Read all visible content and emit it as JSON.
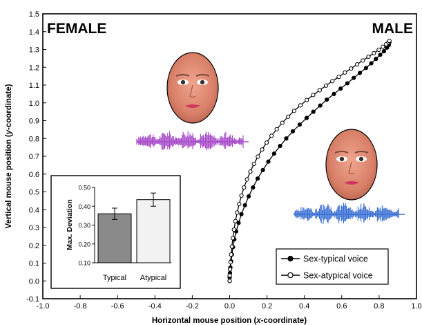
{
  "chart_data": [
    {
      "type": "line",
      "xlabel_parts": [
        "Horizontal mouse position (",
        "x",
        "-coordinate)"
      ],
      "ylabel_parts": [
        "Vertical mouse position (",
        "y",
        "-coordinate)"
      ],
      "xlim": [
        -1.0,
        1.0
      ],
      "ylim": [
        -0.1,
        1.5
      ],
      "xticks": [
        -1.0,
        -0.8,
        -0.6,
        -0.4,
        -0.2,
        0.0,
        0.2,
        0.4,
        0.6,
        0.8,
        1.0
      ],
      "yticks": [
        -0.1,
        0.0,
        0.1,
        0.2,
        0.3,
        0.4,
        0.5,
        0.6,
        0.7,
        0.8,
        0.9,
        1.0,
        1.1,
        1.2,
        1.3,
        1.4,
        1.5
      ],
      "grid": false,
      "legend_position": "bottom-right",
      "annotations": {
        "left_target": "FEMALE",
        "right_target": "MALE"
      },
      "series": [
        {
          "name": "Sex-typical voice",
          "marker": "filled-circle",
          "x": [
            0.0,
            0.0,
            0.002,
            0.004,
            0.008,
            0.012,
            0.018,
            0.025,
            0.035,
            0.048,
            0.063,
            0.082,
            0.102,
            0.125,
            0.15,
            0.178,
            0.207,
            0.238,
            0.27,
            0.303,
            0.338,
            0.375,
            0.412,
            0.448,
            0.485,
            0.52,
            0.558,
            0.594,
            0.63,
            0.664,
            0.697,
            0.73,
            0.758,
            0.783,
            0.806,
            0.826,
            0.842,
            0.852,
            0.855
          ],
          "y": [
            0.0,
            0.02,
            0.045,
            0.075,
            0.11,
            0.148,
            0.19,
            0.233,
            0.278,
            0.326,
            0.375,
            0.425,
            0.475,
            0.525,
            0.575,
            0.623,
            0.67,
            0.715,
            0.758,
            0.8,
            0.84,
            0.878,
            0.915,
            0.95,
            0.985,
            1.018,
            1.05,
            1.08,
            1.11,
            1.14,
            1.168,
            1.196,
            1.222,
            1.247,
            1.27,
            1.29,
            1.31,
            1.325,
            1.34
          ]
        },
        {
          "name": "Sex-atypical voice",
          "marker": "open-circle",
          "x": [
            0.0,
            0.0,
            0.002,
            0.005,
            0.008,
            0.012,
            0.017,
            0.023,
            0.031,
            0.04,
            0.051,
            0.063,
            0.077,
            0.093,
            0.111,
            0.13,
            0.151,
            0.174,
            0.198,
            0.224,
            0.252,
            0.282,
            0.313,
            0.345,
            0.379,
            0.413,
            0.447,
            0.482,
            0.516,
            0.55,
            0.584,
            0.617,
            0.65,
            0.682,
            0.713,
            0.743,
            0.772,
            0.798,
            0.82,
            0.838,
            0.85,
            0.855
          ],
          "y": [
            0.0,
            0.03,
            0.065,
            0.105,
            0.148,
            0.193,
            0.24,
            0.288,
            0.336,
            0.384,
            0.432,
            0.479,
            0.525,
            0.57,
            0.614,
            0.657,
            0.698,
            0.738,
            0.777,
            0.815,
            0.852,
            0.888,
            0.922,
            0.955,
            0.986,
            1.016,
            1.044,
            1.071,
            1.097,
            1.122,
            1.146,
            1.17,
            1.193,
            1.216,
            1.238,
            1.259,
            1.279,
            1.298,
            1.315,
            1.329,
            1.34,
            1.348
          ]
        }
      ]
    },
    {
      "type": "bar",
      "categories": [
        "Typical",
        "Atypical"
      ],
      "values": [
        0.36,
        0.435
      ],
      "error": [
        0.03,
        0.035
      ],
      "colors": [
        "#8a8a8a",
        "#f2f2f2"
      ],
      "ylabel": "Max. Deviation",
      "ylim": [
        0.1,
        0.5
      ],
      "yticks": [
        "0.10",
        "0.20",
        "0.30",
        "0.40",
        "0.50"
      ]
    }
  ],
  "waveform_colors": {
    "female": "#a64ac9",
    "male": "#3a6fd4"
  }
}
